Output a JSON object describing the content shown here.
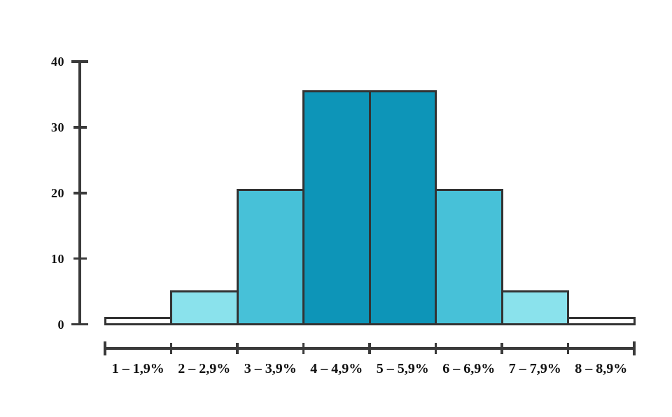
{
  "chart_data": {
    "type": "bar",
    "kind": "histogram",
    "title": "",
    "xlabel": "",
    "ylabel": "",
    "categories": [
      "1 – 1,9%",
      "2 – 2,9%",
      "3 – 3,9%",
      "4 – 4,9%",
      "5 – 5,9%",
      "6 – 6,9%",
      "7 – 7,9%",
      "8 – 8,9%"
    ],
    "values": [
      1,
      5,
      20.5,
      35.5,
      35.5,
      20.5,
      5,
      1
    ],
    "bar_colors": [
      "#ffffff",
      "#8ae2ec",
      "#47c1d8",
      "#0d95b8",
      "#0d95b8",
      "#47c1d8",
      "#8ae2ec",
      "#ffffff"
    ],
    "ylim": [
      0,
      40
    ],
    "yticks": [
      0,
      10,
      20,
      30,
      40
    ],
    "grid": false,
    "legend_position": "none",
    "bars_touching": true,
    "x_axis_detached_below_bars": true
  },
  "colors": {
    "background": "#ffffff",
    "bar_border": "#333333",
    "axis": "#3a3a3a",
    "text": "#111111"
  }
}
